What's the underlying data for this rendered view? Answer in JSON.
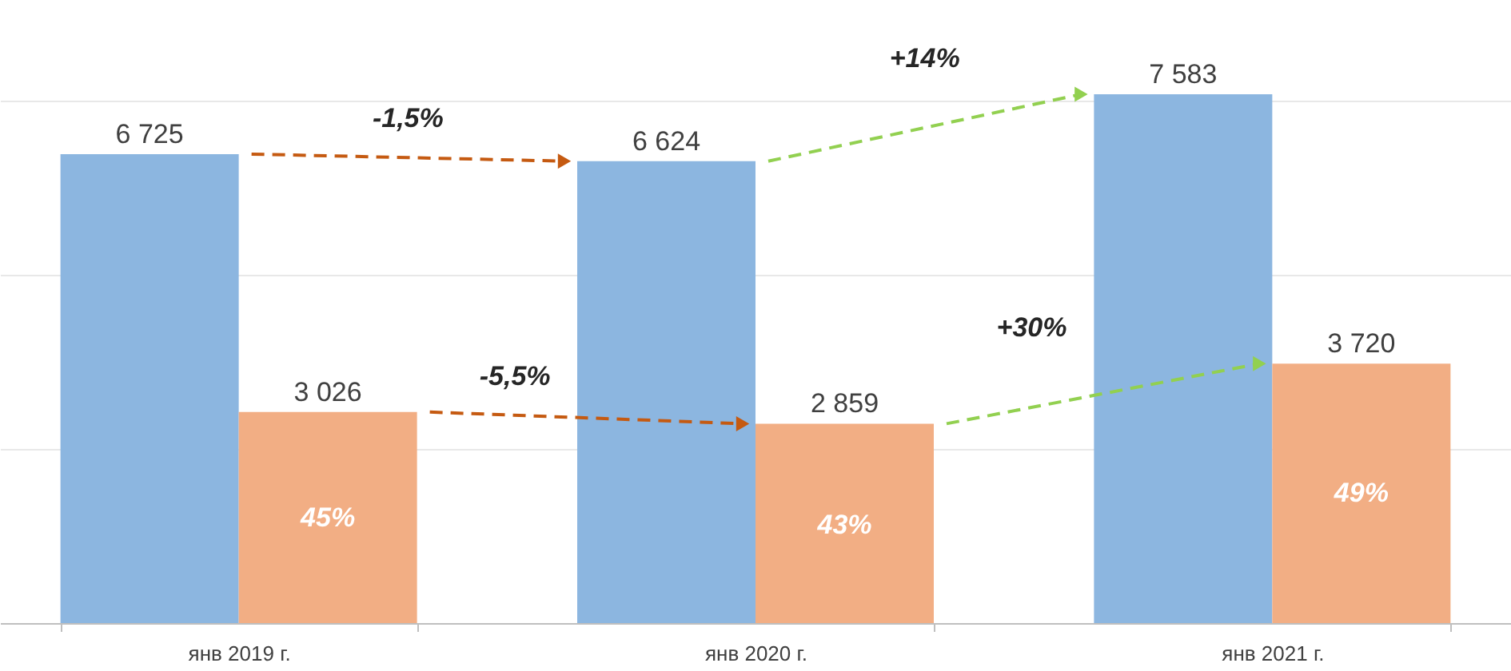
{
  "chart_data": {
    "type": "bar",
    "categories": [
      "янв 2019 г.",
      "янв 2020 г.",
      "янв 2021 г."
    ],
    "series": [
      {
        "color": "#8cb6e0",
        "values": [
          6725,
          6624,
          7583
        ],
        "value_labels": [
          "6 725",
          "6 624",
          "7 583"
        ]
      },
      {
        "color": "#f2ae84",
        "values": [
          3026,
          2859,
          3720
        ],
        "value_labels": [
          "3 026",
          "2 859",
          "3 720"
        ]
      }
    ],
    "yticks": [
      {
        "value": 0,
        "label": null
      },
      {
        "value": 2500,
        "label": null
      },
      {
        "value": 5000,
        "label": null
      },
      {
        "value": 7500,
        "label": null
      }
    ],
    "grid": "y",
    "tick_labels": "x",
    "legend": false,
    "annotations": [
      "-1,5%",
      "+14%",
      "-5,5%",
      "+30%",
      {
        "text": "45%",
        "x": "янв 2019 г.",
        "y": 1500
      },
      {
        "text": "43%",
        "x": "янв 2020 г.",
        "y": 1400
      },
      {
        "text": "49%",
        "x": "янв 2021 г.",
        "y": 1850
      }
    ]
  }
}
